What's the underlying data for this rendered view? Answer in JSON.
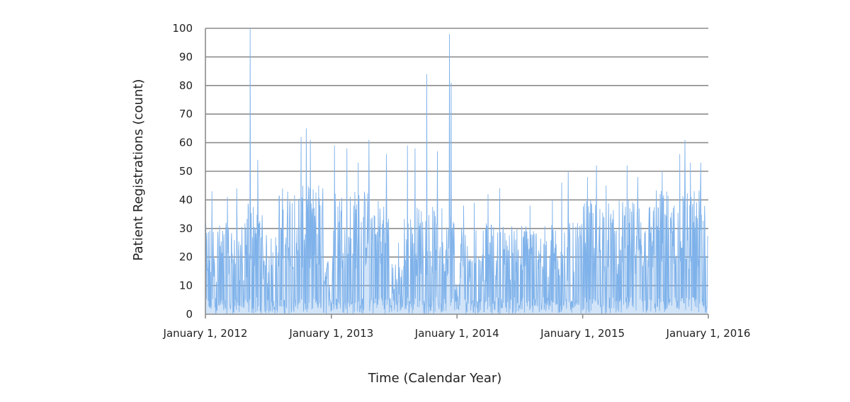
{
  "chart_data": {
    "type": "line",
    "title": "",
    "xlabel": "Time (Calendar Year)",
    "ylabel": "Patient Registrations (count)",
    "ylim": [
      0,
      100
    ],
    "yticks": [
      0,
      10,
      20,
      30,
      40,
      50,
      60,
      70,
      80,
      90,
      100
    ],
    "xlim": [
      "2012-01-01",
      "2016-01-01"
    ],
    "xticks": [
      {
        "date": "2012-01-01",
        "label": "January 1, 2012"
      },
      {
        "date": "2013-01-01",
        "label": "January 1, 2013"
      },
      {
        "date": "2014-01-01",
        "label": "January 1, 2014"
      },
      {
        "date": "2015-01-01",
        "label": "January 1, 2015"
      },
      {
        "date": "2016-01-01",
        "label": "January 1, 2016"
      }
    ],
    "grid": true,
    "legend": "none",
    "series_color": "#7fb2ea",
    "grid_color": "#8c8c8c",
    "series": [
      {
        "name": "",
        "granularity": "daily",
        "segments": [
          {
            "start": "2012-01-01",
            "end": "2012-05-01",
            "typical_max": 32,
            "peaks": [
              [
                "2012-01-20",
                43
              ],
              [
                "2012-03-05",
                41
              ],
              [
                "2012-04-01",
                44
              ]
            ]
          },
          {
            "start": "2012-05-01",
            "end": "2012-06-15",
            "typical_max": 40,
            "peaks": [
              [
                "2012-05-10",
                100
              ],
              [
                "2012-06-01",
                54
              ]
            ]
          },
          {
            "start": "2012-06-15",
            "end": "2012-08-01",
            "typical_max": 28,
            "peaks": []
          },
          {
            "start": "2012-08-01",
            "end": "2012-12-10",
            "typical_max": 45,
            "peaks": [
              [
                "2012-10-05",
                62
              ],
              [
                "2012-10-20",
                65
              ],
              [
                "2012-11-01",
                61
              ],
              [
                "2012-11-25",
                45
              ]
            ]
          },
          {
            "start": "2012-12-10",
            "end": "2013-01-05",
            "typical_max": 20,
            "peaks": []
          },
          {
            "start": "2013-01-05",
            "end": "2013-06-20",
            "typical_max": 44,
            "peaks": [
              [
                "2013-01-10",
                59
              ],
              [
                "2013-02-15",
                58
              ],
              [
                "2013-03-20",
                53
              ],
              [
                "2013-04-20",
                61
              ],
              [
                "2013-06-10",
                56
              ]
            ]
          },
          {
            "start": "2013-06-20",
            "end": "2013-08-01",
            "typical_max": 18,
            "peaks": [
              [
                "2013-07-15",
                25
              ]
            ]
          },
          {
            "start": "2013-08-01",
            "end": "2013-12-25",
            "typical_max": 38,
            "peaks": [
              [
                "2013-08-10",
                59
              ],
              [
                "2013-09-01",
                58
              ],
              [
                "2013-10-05",
                84
              ],
              [
                "2013-11-05",
                57
              ],
              [
                "2013-12-10",
                98
              ],
              [
                "2013-12-15",
                81
              ]
            ]
          },
          {
            "start": "2013-12-25",
            "end": "2014-01-10",
            "typical_max": 12,
            "peaks": []
          },
          {
            "start": "2014-01-10",
            "end": "2014-12-31",
            "typical_max": 32,
            "peaks": [
              [
                "2014-01-20",
                38
              ],
              [
                "2014-02-20",
                39
              ],
              [
                "2014-04-01",
                42
              ],
              [
                "2014-05-05",
                44
              ],
              [
                "2014-08-01",
                38
              ],
              [
                "2014-10-05",
                40
              ],
              [
                "2014-11-01",
                46
              ],
              [
                "2014-11-20",
                50
              ]
            ]
          },
          {
            "start": "2015-01-01",
            "end": "2015-08-01",
            "typical_max": 40,
            "peaks": [
              [
                "2015-01-15",
                48
              ],
              [
                "2015-02-10",
                52
              ],
              [
                "2015-03-10",
                45
              ],
              [
                "2015-05-10",
                52
              ],
              [
                "2015-06-10",
                48
              ]
            ]
          },
          {
            "start": "2015-08-01",
            "end": "2015-12-31",
            "typical_max": 44,
            "peaks": [
              [
                "2015-08-20",
                50
              ],
              [
                "2015-10-10",
                56
              ],
              [
                "2015-10-25",
                61
              ],
              [
                "2015-11-10",
                53
              ],
              [
                "2015-12-10",
                53
              ]
            ]
          }
        ]
      }
    ]
  }
}
